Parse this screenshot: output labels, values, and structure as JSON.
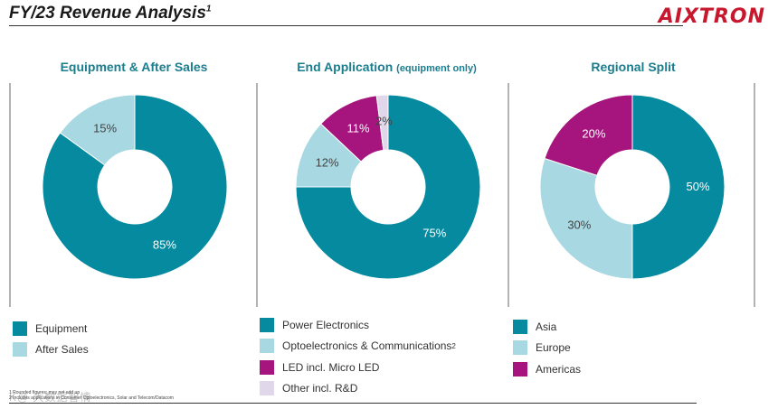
{
  "header": {
    "title": "FY/23 Revenue Analysis",
    "title_sup": "1",
    "logo": "AIXTRON"
  },
  "panels": [
    {
      "title": "Equipment & After Sales",
      "note": ""
    },
    {
      "title": "End Application",
      "note": "(equipment only)"
    },
    {
      "title": "Regional Split",
      "note": ""
    }
  ],
  "colors": {
    "teal": "#058a9f",
    "light_blue": "#a8d8e2",
    "magenta": "#a5157d",
    "lavender": "#e0d7ea",
    "label_dark": "#444444",
    "label_light": "#ffffff"
  },
  "chart_data": [
    {
      "type": "pie",
      "title": "Equipment & After Sales",
      "donut": true,
      "series": [
        {
          "name": "Equipment",
          "value": 85,
          "label": "85%",
          "color": "#058a9f"
        },
        {
          "name": "After Sales",
          "value": 15,
          "label": "15%",
          "color": "#a8d8e2"
        }
      ],
      "legend": [
        "Equipment",
        "After Sales"
      ],
      "legend_position": "bottom-left"
    },
    {
      "type": "pie",
      "title": "End Application (equipment only)",
      "donut": true,
      "series": [
        {
          "name": "Power Electronics",
          "value": 75,
          "label": "75%",
          "color": "#058a9f"
        },
        {
          "name": "Optoelectronics & Communications",
          "value": 12,
          "label": "12%",
          "color": "#a8d8e2"
        },
        {
          "name": "LED incl. Micro LED",
          "value": 11,
          "label": "11%",
          "color": "#a5157d"
        },
        {
          "name": "Other incl. R&D",
          "value": 2,
          "label": "2%",
          "color": "#e0d7ea"
        }
      ],
      "legend": [
        "Power Electronics",
        "Optoelectronics & Communications",
        "LED incl. Micro LED",
        "Other incl. R&D"
      ],
      "legend_sup": [
        "",
        "2",
        "",
        ""
      ],
      "legend_position": "bottom-left"
    },
    {
      "type": "pie",
      "title": "Regional Split",
      "donut": true,
      "series": [
        {
          "name": "Asia",
          "value": 50,
          "label": "50%",
          "color": "#058a9f"
        },
        {
          "name": "Europe",
          "value": 30,
          "label": "30%",
          "color": "#a8d8e2"
        },
        {
          "name": "Americas",
          "value": 20,
          "label": "20%",
          "color": "#a5157d"
        }
      ],
      "legend": [
        "Asia",
        "Europe",
        "Americas"
      ],
      "legend_position": "bottom-left"
    }
  ],
  "footer": {
    "footnote1": "1 Rounded figures; may not add up",
    "footnote2": "2 Includes applications in Consumer Optoelectronics, Solar and Telecom/Datacom",
    "watermark": "K@ 大数据智情"
  }
}
